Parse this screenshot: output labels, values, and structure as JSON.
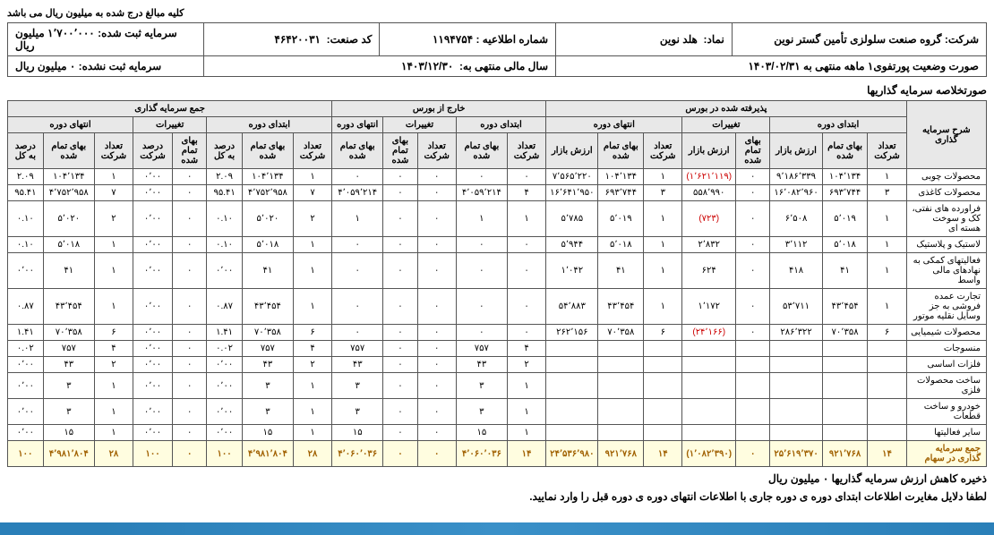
{
  "caption": "کلیه مبالغ درج شده به میلیون ریال می باشد",
  "header": {
    "company_label": "شرکت:",
    "company": "گروه صنعت سلولزی تأمین گستر نوین",
    "symbol_label": "نماد:",
    "symbol": "هلد نوین",
    "notice_label": "شماره اطلاعیه :",
    "notice": "۱۱۹۴۷۵۴",
    "industry_label": "کد صنعت:",
    "industry": "۴۶۴۲۰۰۳۱",
    "capital_reg_label": "سرمایه ثبت شده:",
    "capital_reg": "۱٬۷۰۰٬۰۰۰ میلیون ریال",
    "portfolio_label": "صورت وضعیت پورتفوی۱ ماهه منتهی به ۱۴۰۳/۰۲/۳۱",
    "fiscal_label": "سال مالی منتهی به:",
    "fiscal": "۱۴۰۳/۱۲/۳۰",
    "capital_unreg_label": "سرمایه ثبت نشده:",
    "capital_unreg": "۰ میلیون ریال"
  },
  "section_title": "صورتخلاصه سرمایه گذاریها",
  "groups": {
    "row_header": "شرح سرمایه گذاری",
    "g1": "پذیرفته شده در بورس",
    "g2": "خارج از بورس",
    "g3": "جمع سرمایه گذاری",
    "sub_begin": "ابتدای دوره",
    "sub_change": "تغییرات",
    "sub_end": "انتهای دوره"
  },
  "cols": {
    "count": "تعداد شرکت",
    "cost": "بهای تمام شده",
    "market": "ارزش بازار",
    "pct_total": "درصد به کل",
    "pct_co": "درصد شرکت"
  },
  "rows": [
    {
      "label": "محصولات چوبی",
      "c": [
        "۱",
        "۱۰۴٬۱۳۴",
        "۹٬۱۸۶٬۳۳۹",
        "۰",
        "(۱٬۶۲۱٬۱۱۹)",
        "۱",
        "۱۰۴٬۱۳۴",
        "۷٬۵۶۵٬۲۲۰",
        "۰",
        "۰",
        "۰",
        "۰",
        "۰",
        "۱",
        "۱۰۴٬۱۳۴",
        "۲.۰۹",
        "۰",
        "۰٬۰۰",
        "۱",
        "۱۰۴٬۱۳۴",
        "۲.۰۹"
      ]
    },
    {
      "label": "محصولات کاغذی",
      "c": [
        "۳",
        "۶۹۳٬۷۴۴",
        "۱۶٬۰۸۲٬۹۶۰",
        "۰",
        "۵۵۸٬۹۹۰",
        "۳",
        "۶۹۳٬۷۴۴",
        "۱۶٬۶۴۱٬۹۵۰",
        "۴",
        "۴٬۰۵۹٬۲۱۴",
        "۰",
        "۰",
        "۴٬۰۵۹٬۲۱۴",
        "۷",
        "۴٬۷۵۲٬۹۵۸",
        "۹۵.۴۱",
        "۰",
        "۰٬۰۰",
        "۷",
        "۴٬۷۵۲٬۹۵۸",
        "۹۵.۴۱"
      ]
    },
    {
      "label": "فراورده های نفتی، کک و سوخت هسته ای",
      "c": [
        "۱",
        "۵٬۰۱۹",
        "۶٬۵۰۸",
        "۰",
        "(۷۲۳)",
        "۱",
        "۵٬۰۱۹",
        "۵٬۷۸۵",
        "۱",
        "۱",
        "۰",
        "۰",
        "۱",
        "۲",
        "۵٬۰۲۰",
        "۰.۱۰",
        "۰",
        "۰٬۰۰",
        "۲",
        "۵٬۰۲۰",
        "۰.۱۰"
      ]
    },
    {
      "label": "لاستیک و پلاستیک",
      "c": [
        "۱",
        "۵٬۰۱۸",
        "۳٬۱۱۲",
        "۰",
        "۲٬۸۳۲",
        "۱",
        "۵٬۰۱۸",
        "۵٬۹۴۴",
        "۰",
        "۰",
        "۰",
        "۰",
        "۰",
        "۱",
        "۵٬۰۱۸",
        "۰.۱۰",
        "۰",
        "۰٬۰۰",
        "۱",
        "۵٬۰۱۸",
        "۰.۱۰"
      ]
    },
    {
      "label": "فعالیتهای کمکی به نهادهای مالی واسط",
      "c": [
        "۱",
        "۴۱",
        "۴۱۸",
        "۰",
        "۶۲۴",
        "۱",
        "۴۱",
        "۱٬۰۴۲",
        "۰",
        "۰",
        "۰",
        "۰",
        "۰",
        "۱",
        "۴۱",
        "۰٬۰۰",
        "۰",
        "۰٬۰۰",
        "۱",
        "۴۱",
        "۰٬۰۰"
      ]
    },
    {
      "label": "تجارت عمده فروشی به جز وسایل نقلیه موتور",
      "c": [
        "۱",
        "۴۳٬۴۵۴",
        "۵۳٬۷۱۱",
        "۰",
        "۱٬۱۷۲",
        "۱",
        "۴۳٬۴۵۴",
        "۵۴٬۸۸۳",
        "۰",
        "۰",
        "۰",
        "۰",
        "۰",
        "۱",
        "۴۳٬۴۵۴",
        "۰.۸۷",
        "۰",
        "۰٬۰۰",
        "۱",
        "۴۳٬۴۵۴",
        "۰.۸۷"
      ]
    },
    {
      "label": "محصولات شیمیایی",
      "c": [
        "۶",
        "۷۰٬۳۵۸",
        "۲۸۶٬۳۲۲",
        "۰",
        "(۲۴٬۱۶۶)",
        "۶",
        "۷۰٬۳۵۸",
        "۲۶۲٬۱۵۶",
        "۰",
        "۰",
        "۰",
        "۰",
        "۰",
        "۶",
        "۷۰٬۳۵۸",
        "۱.۴۱",
        "۰",
        "۰٬۰۰",
        "۶",
        "۷۰٬۳۵۸",
        "۱.۴۱"
      ]
    },
    {
      "label": "منسوجات",
      "c": [
        "",
        "",
        "",
        "",
        "",
        "",
        "",
        "",
        "۴",
        "۷۵۷",
        "۰",
        "۰",
        "۷۵۷",
        "۴",
        "۷۵۷",
        "۰.۰۲",
        "۰",
        "۰٬۰۰",
        "۴",
        "۷۵۷",
        "۰.۰۲"
      ]
    },
    {
      "label": "فلزات اساسی",
      "c": [
        "",
        "",
        "",
        "",
        "",
        "",
        "",
        "",
        "۲",
        "۴۳",
        "۰",
        "۰",
        "۴۳",
        "۲",
        "۴۳",
        "۰٬۰۰",
        "۰",
        "۰٬۰۰",
        "۲",
        "۴۳",
        "۰٬۰۰"
      ]
    },
    {
      "label": "ساخت محصولات فلزی",
      "c": [
        "",
        "",
        "",
        "",
        "",
        "",
        "",
        "",
        "۱",
        "۳",
        "۰",
        "۰",
        "۳",
        "۱",
        "۳",
        "۰٬۰۰",
        "۰",
        "۰٬۰۰",
        "۱",
        "۳",
        "۰٬۰۰"
      ]
    },
    {
      "label": "خودرو و ساخت قطعات",
      "c": [
        "",
        "",
        "",
        "",
        "",
        "",
        "",
        "",
        "۱",
        "۳",
        "۰",
        "۰",
        "۳",
        "۱",
        "۳",
        "۰٬۰۰",
        "۰",
        "۰٬۰۰",
        "۱",
        "۳",
        "۰٬۰۰"
      ]
    },
    {
      "label": "سایر فعالیتها",
      "c": [
        "",
        "",
        "",
        "",
        "",
        "",
        "",
        "",
        "۱",
        "۱۵",
        "۰",
        "۰",
        "۱۵",
        "۱",
        "۱۵",
        "۰٬۰۰",
        "۰",
        "۰٬۰۰",
        "۱",
        "۱۵",
        "۰٬۰۰"
      ]
    }
  ],
  "total": {
    "label": "جمع سرمایه گذاری در سهام",
    "c": [
      "۱۴",
      "۹۲۱٬۷۶۸",
      "۲۵٬۶۱۹٬۳۷۰",
      "۰",
      "(۱٬۰۸۲٬۳۹۰)",
      "۱۴",
      "۹۲۱٬۷۶۸",
      "۲۴٬۵۳۶٬۹۸۰",
      "۱۴",
      "۴٬۰۶۰٬۰۳۶",
      "۰",
      "۰",
      "۴٬۰۶۰٬۰۳۶",
      "۲۸",
      "۴٬۹۸۱٬۸۰۴",
      "۱۰۰",
      "۰",
      "۱۰۰",
      "۲۸",
      "۴٬۹۸۱٬۸۰۴",
      "۱۰۰"
    ]
  },
  "footer1": "ذخیره کاهش ارزش سرمایه گذاریها ۰ میلیون ریال",
  "footer2": "لطفا دلایل مغایرت اطلاعات ابتدای دوره ی دوره جاری با اطلاعات انتهای دوره ی دوره قبل را وارد نمایید."
}
